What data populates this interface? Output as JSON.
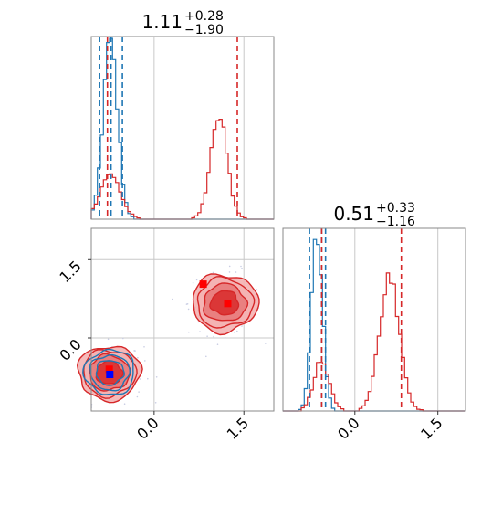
{
  "panel_titles": {
    "top": {
      "value": "1.11",
      "sup": "+0.28",
      "sub": "−1.90"
    },
    "diag": {
      "value": "0.51",
      "sup": "+0.33",
      "sub": "−1.16"
    }
  },
  "colors": {
    "blue": "#1f77b4",
    "red": "#d62728",
    "red_fill_light": "#f4b3b3",
    "red_fill_mid": "#e87a7a",
    "red_fill_dark": "#d92f2f",
    "grid": "#c8c8c8",
    "frame": "#888888",
    "marker_red": "#ff0000",
    "marker_blue": "#0000ff"
  },
  "chart_data": [
    {
      "type": "histogram",
      "panel": "param-1-marginal",
      "title": "1.11_{-1.90}^{+0.28}",
      "xlim": [
        -1.05,
        2.0
      ],
      "grid": true,
      "series": [
        {
          "name": "",
          "color": "blue",
          "peak": -0.73,
          "width": 0.12,
          "quantiles": [
            -0.91,
            -0.72,
            -0.53
          ]
        },
        {
          "name": "",
          "color": "red",
          "modes": [
            {
              "center": -0.73,
              "width": 0.17,
              "height": 0.24
            },
            {
              "center": 1.08,
              "width": 0.14,
              "height": 0.55
            }
          ],
          "quantiles": [
            -0.78,
            1.39
          ]
        }
      ]
    },
    {
      "type": "histogram",
      "panel": "param-2-marginal",
      "title": "0.51_{-1.16}^{+0.33}",
      "xlim": [
        -1.3,
        2.0
      ],
      "xticks": [
        "0.0",
        "1.5"
      ],
      "grid": true,
      "series": [
        {
          "name": "",
          "color": "blue",
          "peak": -0.68,
          "width": 0.1,
          "quantiles": [
            -0.82,
            -0.6,
            -0.53
          ]
        },
        {
          "name": "",
          "color": "red",
          "modes": [
            {
              "center": -0.6,
              "width": 0.14,
              "height": 0.28
            },
            {
              "center": 0.62,
              "width": 0.18,
              "height": 0.72
            }
          ],
          "quantiles": [
            -0.6,
            0.84
          ]
        }
      ]
    },
    {
      "type": "contour",
      "panel": "joint",
      "xlim": [
        -1.05,
        2.0
      ],
      "ylim": [
        -1.4,
        2.1
      ],
      "xticks": [
        "0.0",
        "1.5"
      ],
      "yticks": [
        "0.0",
        "1.5"
      ],
      "grid": true,
      "series": [
        {
          "name": "",
          "color": "red",
          "blobs": [
            {
              "cx": -0.75,
              "cy": -0.67,
              "rx": 0.52,
              "ry": 0.52
            },
            {
              "cx": 1.18,
              "cy": 0.67,
              "rx": 0.55,
              "ry": 0.55
            }
          ]
        },
        {
          "name": "",
          "color": "blue",
          "blobs": [
            {
              "cx": -0.74,
              "cy": -0.66,
              "rx": 0.42,
              "ry": 0.43
            }
          ]
        }
      ],
      "markers": [
        {
          "color": "marker_red",
          "x": 0.82,
          "y": 1.03
        },
        {
          "color": "marker_red",
          "x": 1.23,
          "y": 0.66
        },
        {
          "color": "marker_red",
          "x": -0.75,
          "y": -0.6
        },
        {
          "color": "marker_blue",
          "x": -0.74,
          "y": -0.7
        }
      ]
    }
  ]
}
